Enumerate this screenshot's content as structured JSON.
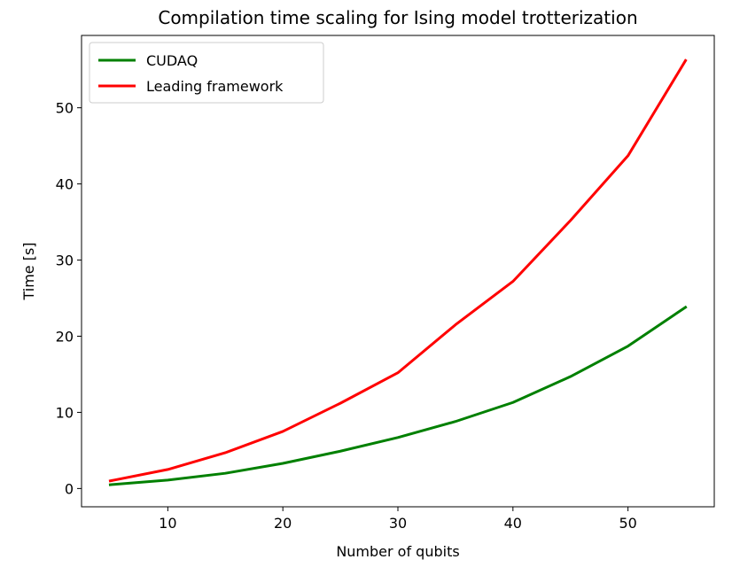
{
  "chart_data": {
    "type": "line",
    "title": "Compilation time scaling for Ising model trotterization",
    "xlabel": "Number of qubits",
    "ylabel": "Time [s]",
    "xlim": [
      2.5,
      57.5
    ],
    "ylim": [
      -2.4,
      59.5
    ],
    "xticks": [
      10,
      20,
      30,
      40,
      50
    ],
    "yticks": [
      0,
      10,
      20,
      30,
      40,
      50
    ],
    "grid": false,
    "legend": "upper-left",
    "x": [
      5,
      10,
      15,
      20,
      25,
      30,
      35,
      40,
      45,
      50,
      55
    ],
    "series": [
      {
        "name": "CUDAQ",
        "color": "#008000",
        "values": [
          0.5,
          1.1,
          2.0,
          3.3,
          4.9,
          6.7,
          8.8,
          11.3,
          14.7,
          18.7,
          23.8
        ]
      },
      {
        "name": "Leading framework",
        "color": "#ff0000",
        "values": [
          1.0,
          2.5,
          4.7,
          7.5,
          11.2,
          15.2,
          21.5,
          27.2,
          35.2,
          43.7,
          56.2
        ]
      }
    ]
  }
}
